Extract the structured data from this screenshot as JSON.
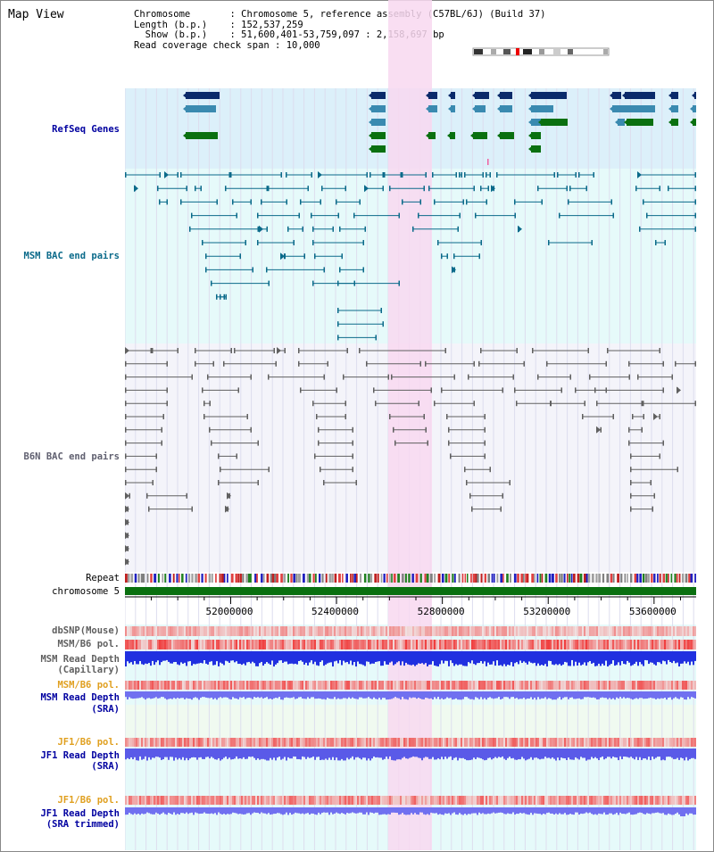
{
  "window": {
    "title": "Map View"
  },
  "info": {
    "chromosome_key": "Chromosome",
    "chromosome_val": "Chromosome 5, reference assembly (C57BL/6J) (Build 37)",
    "length_key": "Length (b.p.)",
    "length_val": "152,537,259",
    "show_key": "Show (b.p.)",
    "show_val": "51,600,401-53,759,097 : 2,158,697 bp",
    "span_key": "Read coverage check span",
    "span_val": "10,000"
  },
  "tracks": {
    "refseq": "RefSeq Genes",
    "msm_bac": "MSM BAC end pairs",
    "b6n_bac": "B6N BAC end pairs",
    "repeat": "Repeat",
    "chromosome": "chromosome 5",
    "dbsnp": "dbSNP(Mouse)",
    "msm_b6_pol_1": "MSM/B6 pol.",
    "msm_depth_cap_1": "MSM Read Depth",
    "msm_depth_cap_2": "(Capillary)",
    "msm_b6_pol_2": "MSM/B6 pol.",
    "msm_depth_sra_1": "MSM Read Depth",
    "msm_depth_sra_2": "(SRA)",
    "jf1_b6_pol_1": "JF1/B6 pol.",
    "jf1_depth_sra_1": "JF1 Read Depth",
    "jf1_depth_sra_2": "(SRA)",
    "jf1_b6_pol_2": "JF1/B6 pol.",
    "jf1_depth_trim_1": "JF1 Read Depth",
    "jf1_depth_trim_2": "(SRA trimmed)"
  },
  "axis": {
    "range": [
      51600401,
      53759097
    ],
    "ticks": [
      "52000000",
      "52400000",
      "52800000",
      "53200000",
      "53600000"
    ]
  },
  "highlight": {
    "start": 52600000,
    "end": 52760000,
    "color": "#f8d8f0"
  },
  "colors": {
    "refseq_bg": "#dcf0fa",
    "msm_bg": "#e6fafa",
    "b6n_bg": "#f4f4fa",
    "gene_dark": "#0a2a6a",
    "gene_mid": "#3a8ab0",
    "gene_green": "#0a7010",
    "msm_line": "#0a6a8a",
    "b6n_line": "#606060",
    "chrom_bar": "#0a7010",
    "snp": "#f07070",
    "depth_blue": "#2030e0",
    "depth_light": "#7070f0",
    "jf_label": "#e0a020",
    "blue_label": "#0000a0"
  }
}
